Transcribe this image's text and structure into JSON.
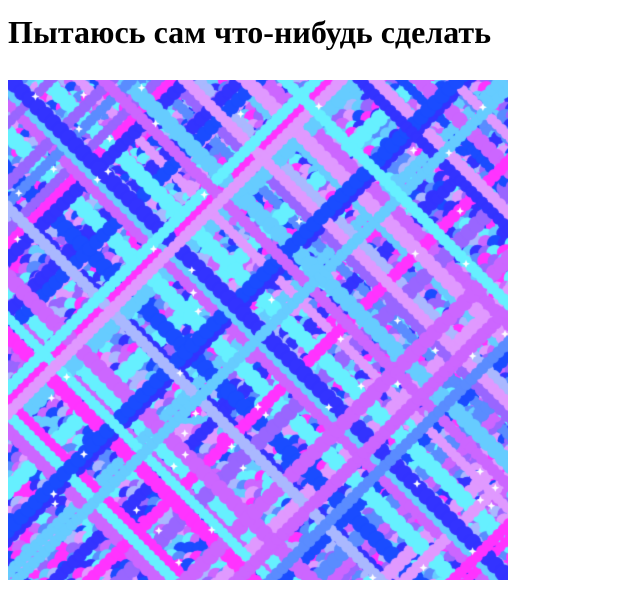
{
  "page": {
    "title": "Пытаюсь сам что-нибудь сделать"
  },
  "artwork": {
    "palette": [
      "#ff33ff",
      "#3333ff",
      "#1a4cff",
      "#5a8cff",
      "#9966ff",
      "#cc66ff",
      "#66ccff",
      "#66f0ff",
      "#aab8ff",
      "#e099ff"
    ],
    "background": "#ffffff"
  }
}
